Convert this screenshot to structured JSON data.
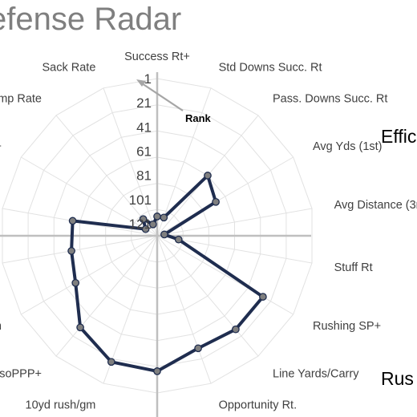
{
  "chart_data": {
    "type": "radar",
    "title": "efense Radar",
    "axes": [
      "Success Rt+",
      "Std Downs Succ. Rt",
      "Pass. Downs Succ. Rt",
      "Avg Yds (1st)",
      "Avg Distance (3r",
      "Stuff Rt",
      "Rushing SP+",
      "Line Yards/Carry",
      "Opportunity Rt.",
      "",
      "10yd rush/gm",
      "IsoPPP+",
      "/gm",
      "",
      "",
      "+",
      "mp Rate",
      "Sack Rate"
    ],
    "rank_ticks": [
      "1",
      "21",
      "41",
      "61",
      "81",
      "101",
      "121"
    ],
    "rank_range": [
      1,
      131
    ],
    "values": [
      115,
      115,
      66,
      75,
      125,
      113,
      30,
      30,
      32,
      19,
      20,
      32,
      53,
      59,
      60,
      120,
      113,
      121
    ],
    "annotation": "Rank",
    "side_labels": [
      "Effic",
      "Rus"
    ],
    "colors": {
      "series": "#1f2d4f",
      "marker": "#7f7f7f",
      "grid": "#e2e2e2",
      "crosshair": "#bfbfbf"
    }
  }
}
